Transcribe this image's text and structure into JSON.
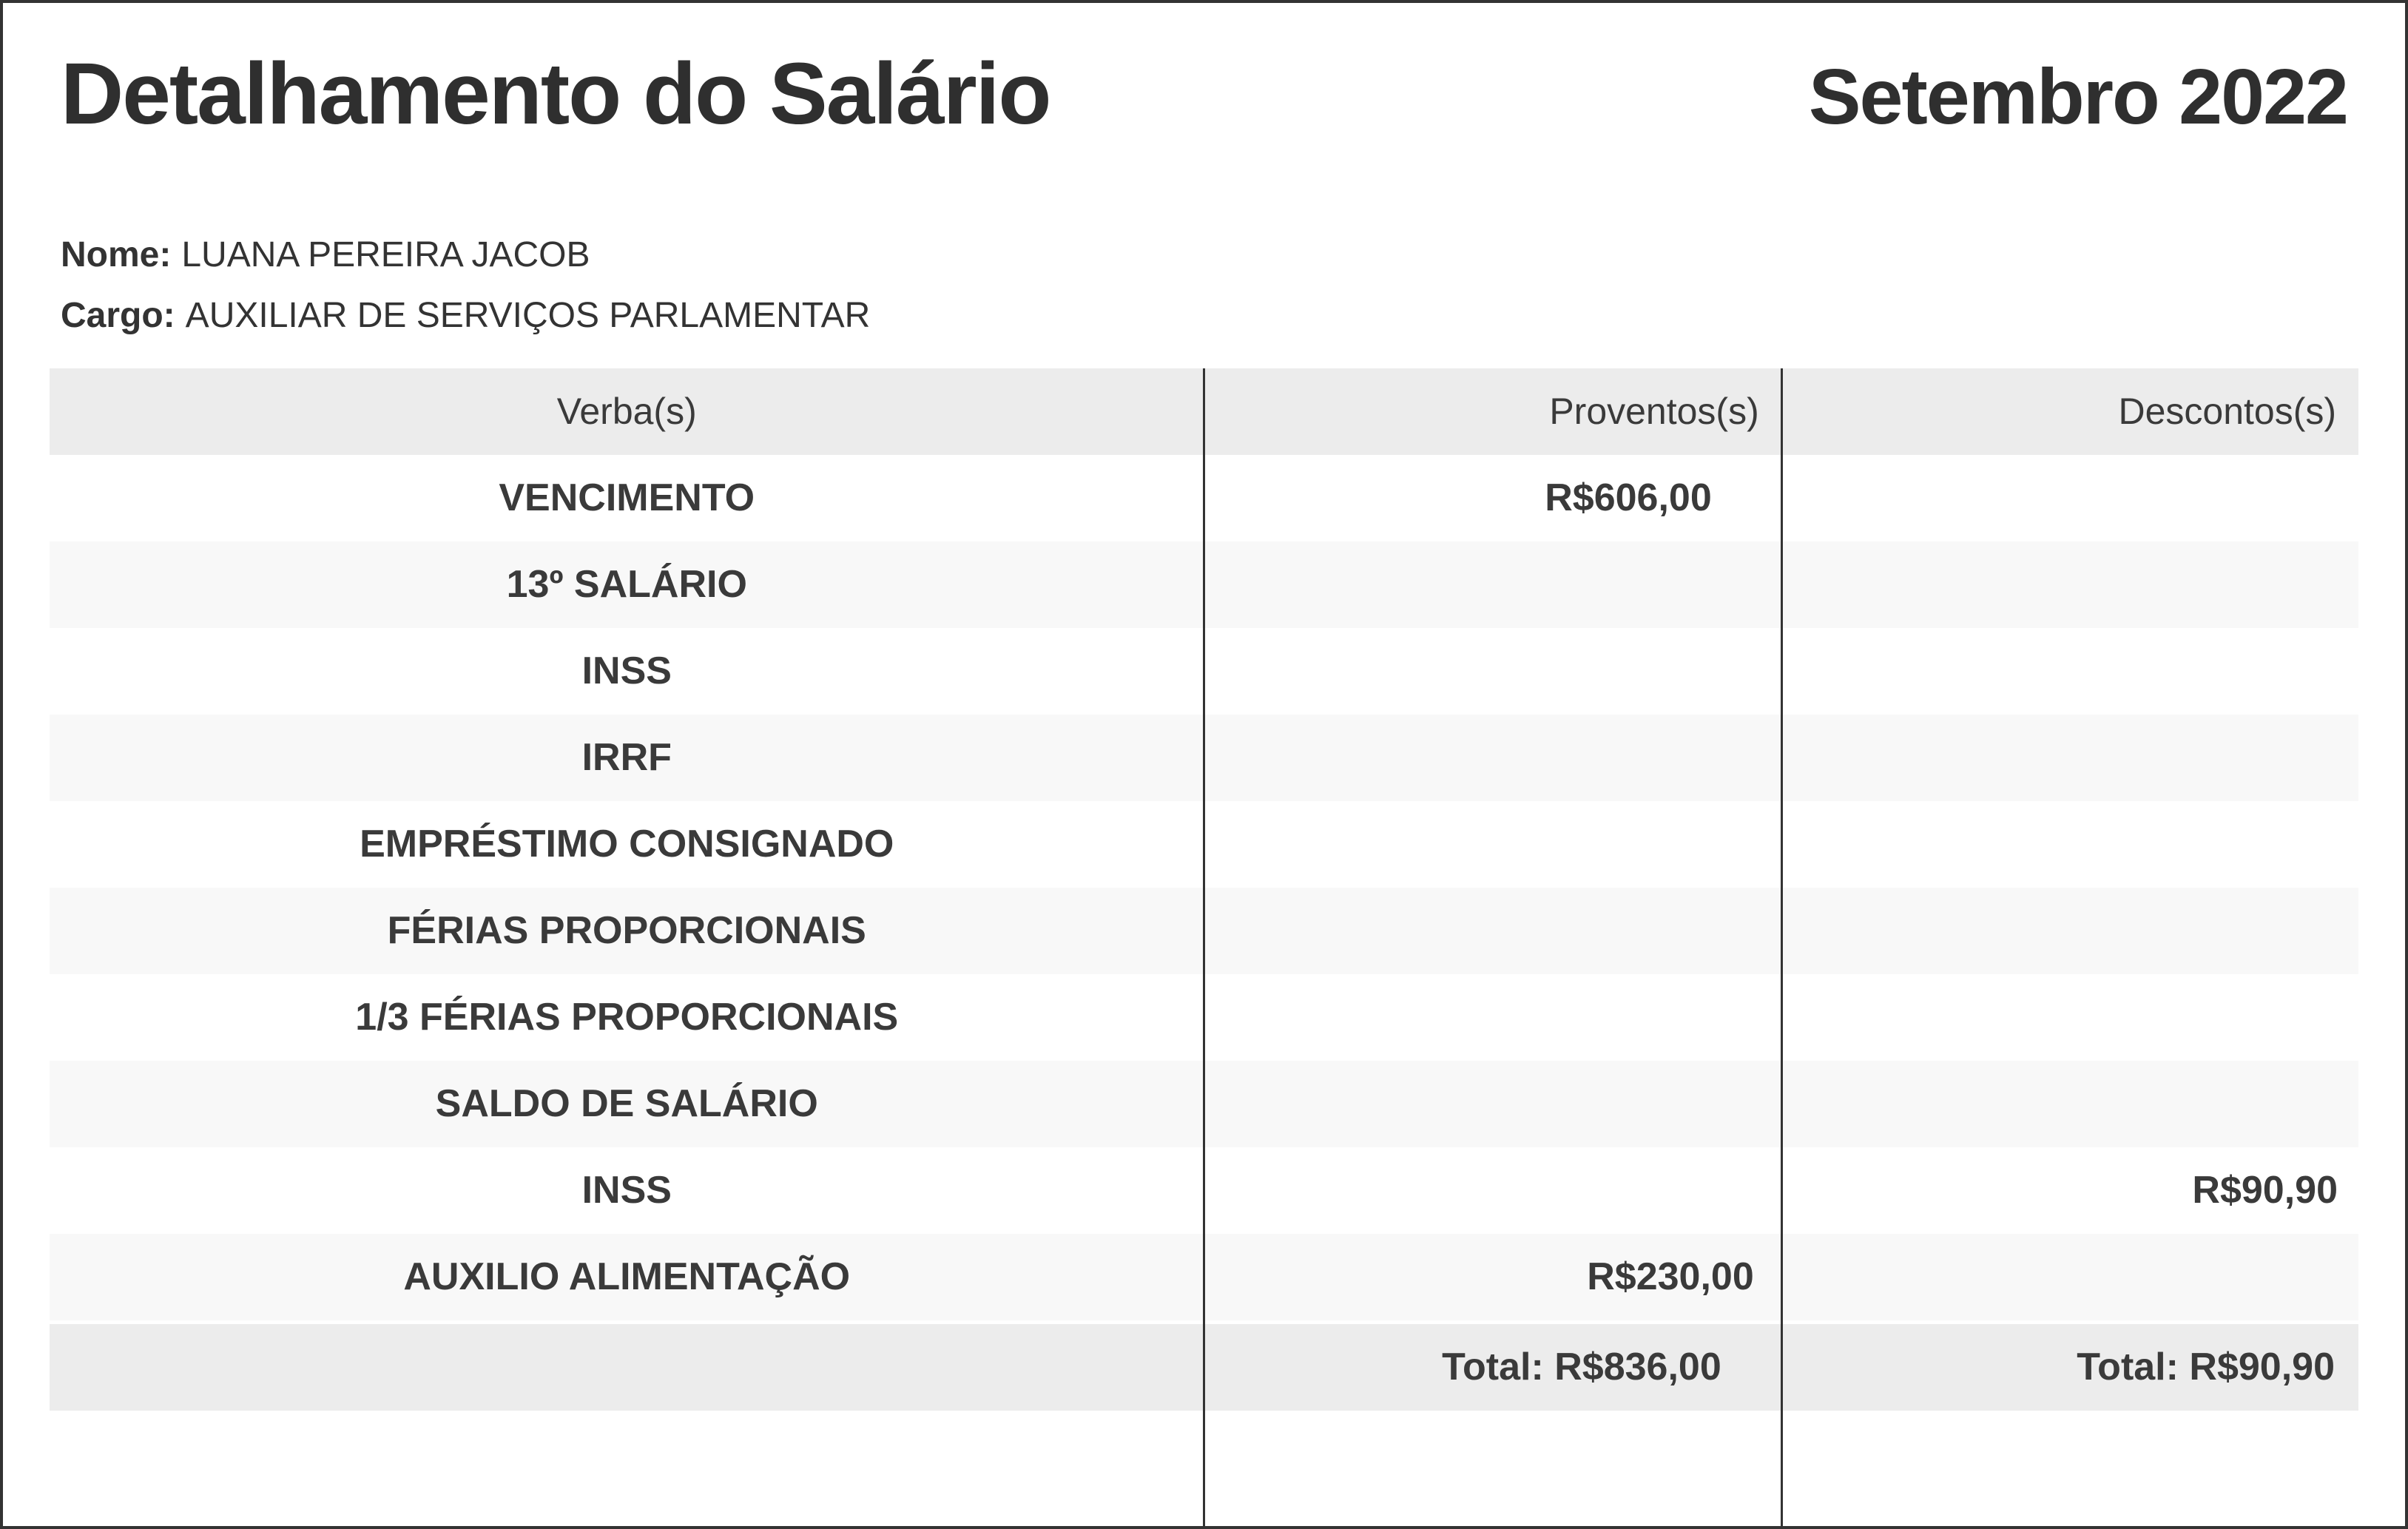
{
  "page": {
    "title": "Detalhamento do Salário",
    "period": "Setembro 2022"
  },
  "employee": {
    "name_label": "Nome:",
    "name": "LUANA PEREIRA JACOB",
    "role_label": "Cargo:",
    "role": "AUXILIAR DE SERVIÇOS PARLAMENTAR"
  },
  "table": {
    "headers": [
      "Verba(s)",
      "Proventos(s)",
      "Descontos(s)"
    ],
    "rows": [
      {
        "verba": "VENCIMENTO",
        "proventos": "R$606,00",
        "descontos": ""
      },
      {
        "verba": "13º SALÁRIO",
        "proventos": "",
        "descontos": ""
      },
      {
        "verba": "INSS",
        "proventos": "",
        "descontos": ""
      },
      {
        "verba": "IRRF",
        "proventos": "",
        "descontos": ""
      },
      {
        "verba": "EMPRÉSTIMO CONSIGNADO",
        "proventos": "",
        "descontos": ""
      },
      {
        "verba": "FÉRIAS PROPORCIONAIS",
        "proventos": "",
        "descontos": ""
      },
      {
        "verba": "1/3 FÉRIAS PROPORCIONAIS",
        "proventos": "",
        "descontos": ""
      },
      {
        "verba": "SALDO DE SALÁRIO",
        "proventos": "",
        "descontos": ""
      },
      {
        "verba": "INSS",
        "proventos": "",
        "descontos": "R$90,90"
      },
      {
        "verba": "AUXILIO ALIMENTAÇÃO",
        "proventos": "R$230,00",
        "descontos": ""
      }
    ],
    "totals": {
      "proventos": "Total: R$836,00",
      "descontos": "Total: R$90,90"
    }
  },
  "colors": {
    "text": "#333333",
    "border": "#333333",
    "header_bg": "#ececec",
    "alt_row_bg": "#f8f8f8",
    "total_row_bg": "#ececec"
  }
}
